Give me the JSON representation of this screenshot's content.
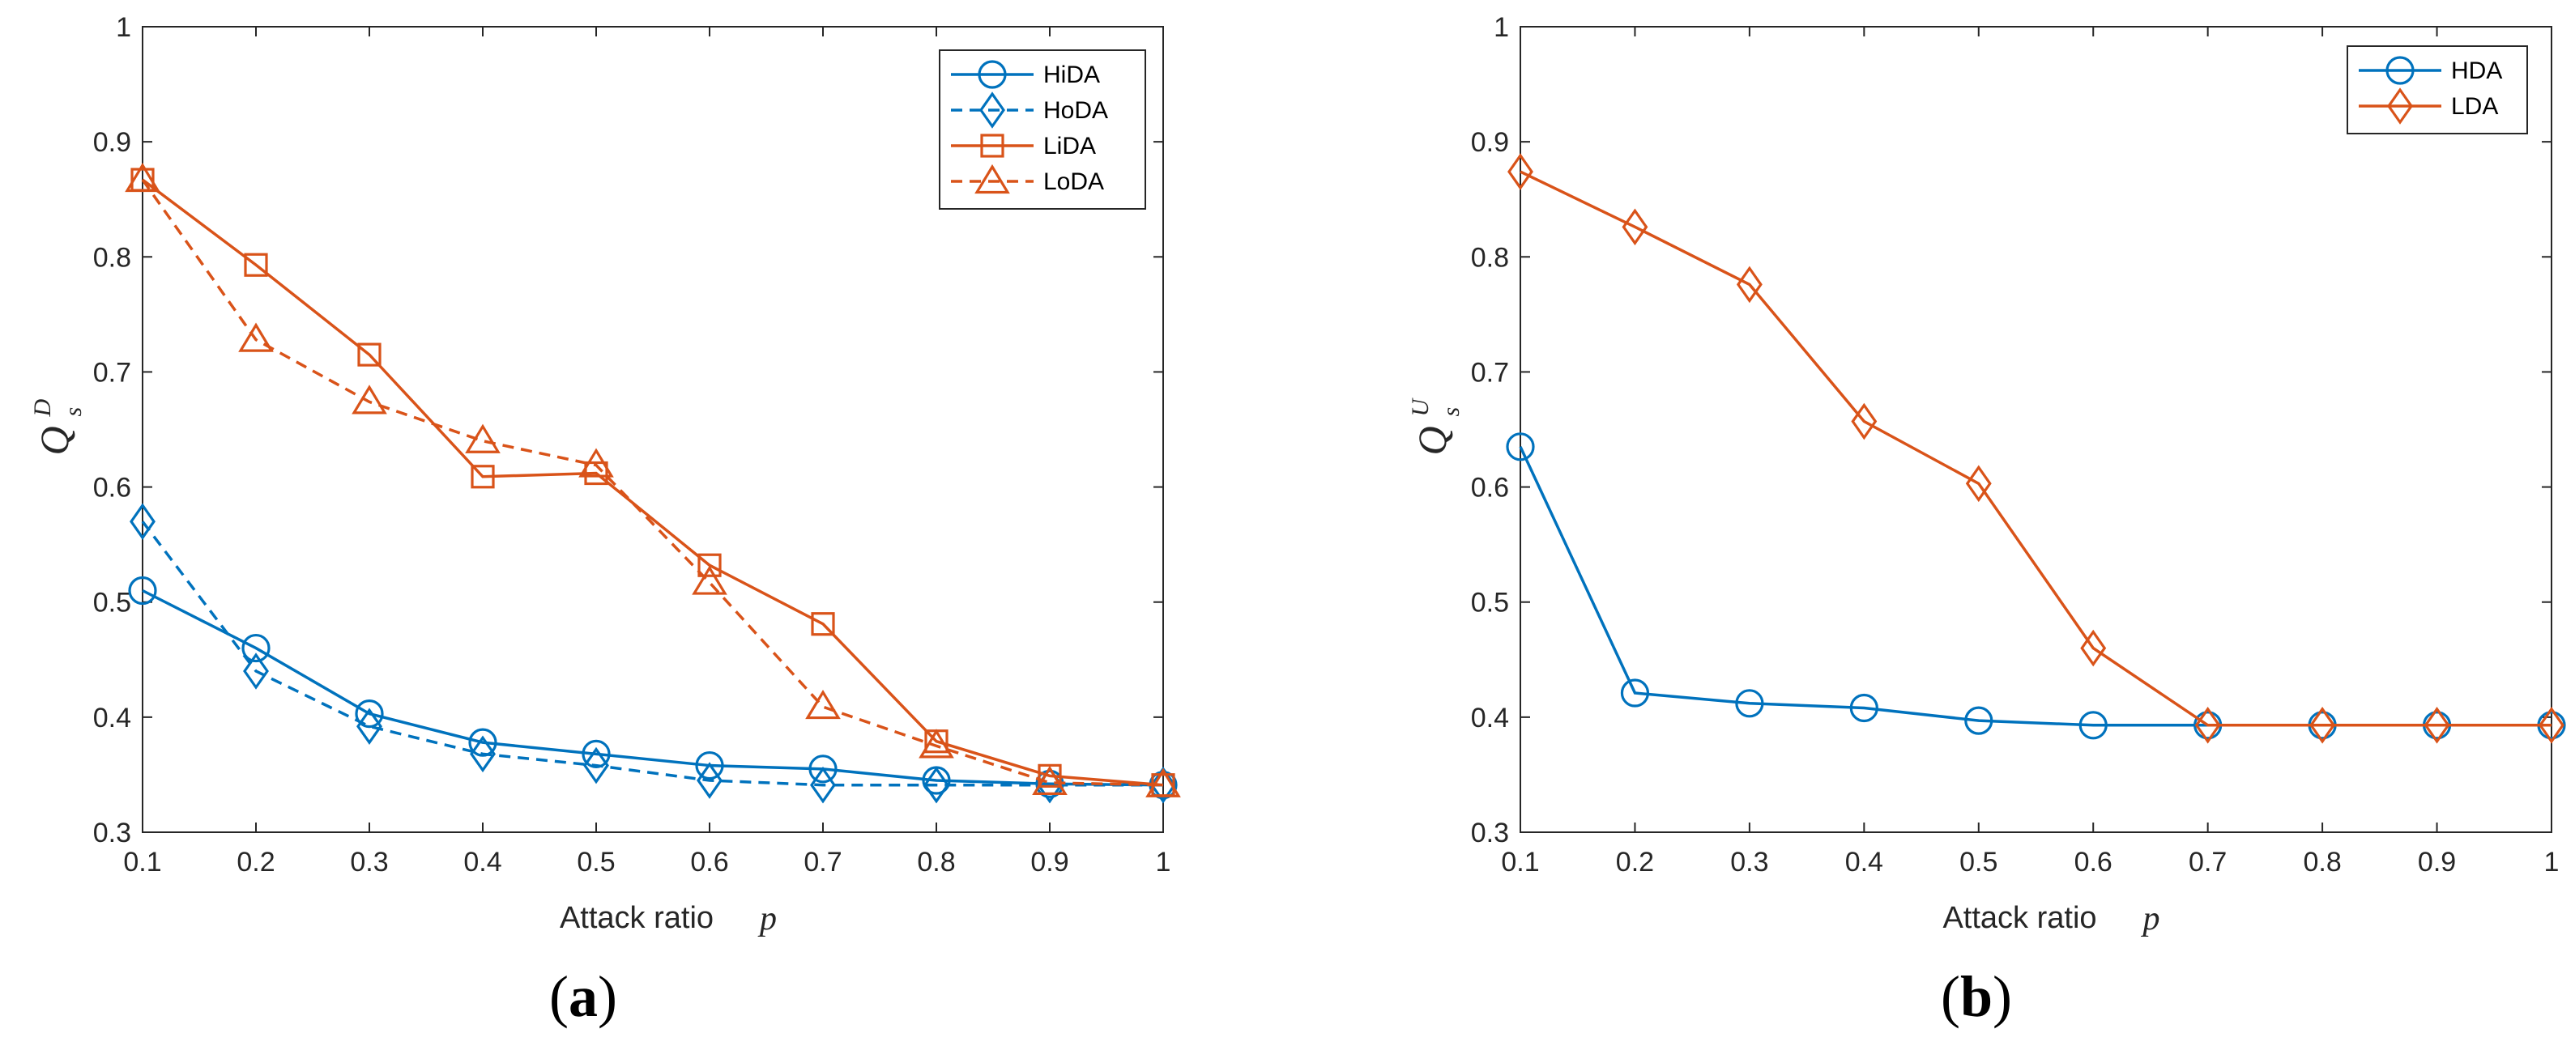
{
  "colors": {
    "blue": "#0072BD",
    "orange": "#D95319",
    "axis": "#262626"
  },
  "chart_data": [
    {
      "id": "a",
      "type": "line",
      "panel_label": {
        "open": "(",
        "letter": "a",
        "close": ")"
      },
      "xlabel": "Attack ratio",
      "xlabel_var": "p",
      "ylabel": {
        "main": "Q",
        "sup": "D",
        "sub": "s"
      },
      "xlim": [
        0.1,
        1
      ],
      "ylim": [
        0.3,
        1
      ],
      "x": [
        0.1,
        0.2,
        0.3,
        0.4,
        0.5,
        0.6,
        0.7,
        0.8,
        0.9,
        1
      ],
      "xticks": [
        "0.1",
        "0.2",
        "0.3",
        "0.4",
        "0.5",
        "0.6",
        "0.7",
        "0.8",
        "0.9",
        "1"
      ],
      "yticks": [
        "0.3",
        "0.4",
        "0.5",
        "0.6",
        "0.7",
        "0.8",
        "0.9",
        "1"
      ],
      "legend_position": "top-right",
      "series": [
        {
          "name": "HiDA",
          "color": "#0072BD",
          "line": "solid",
          "marker": "circle",
          "values": [
            0.51,
            0.46,
            0.403,
            0.378,
            0.368,
            0.358,
            0.355,
            0.345,
            0.342,
            0.341
          ]
        },
        {
          "name": "HoDA",
          "color": "#0072BD",
          "line": "dashed",
          "marker": "diamond",
          "values": [
            0.57,
            0.44,
            0.392,
            0.368,
            0.358,
            0.345,
            0.341,
            0.341,
            0.341,
            0.341
          ]
        },
        {
          "name": "LiDA",
          "color": "#D95319",
          "line": "solid",
          "marker": "square",
          "values": [
            0.867,
            0.793,
            0.715,
            0.609,
            0.612,
            0.532,
            0.481,
            0.379,
            0.349,
            0.341
          ]
        },
        {
          "name": "LoDA",
          "color": "#D95319",
          "line": "dashed",
          "marker": "triangle",
          "values": [
            0.867,
            0.728,
            0.674,
            0.64,
            0.619,
            0.517,
            0.409,
            0.375,
            0.343,
            0.341
          ]
        }
      ]
    },
    {
      "id": "b",
      "type": "line",
      "panel_label": {
        "open": "(",
        "letter": "b",
        "close": ")"
      },
      "xlabel": "Attack ratio",
      "xlabel_var": "p",
      "ylabel": {
        "main": "Q",
        "sup": "U",
        "sub": "s"
      },
      "xlim": [
        0.1,
        1
      ],
      "ylim": [
        0.3,
        1
      ],
      "x": [
        0.1,
        0.2,
        0.3,
        0.4,
        0.5,
        0.6,
        0.7,
        0.8,
        0.9,
        1
      ],
      "xticks": [
        "0.1",
        "0.2",
        "0.3",
        "0.4",
        "0.5",
        "0.6",
        "0.7",
        "0.8",
        "0.9",
        "1"
      ],
      "yticks": [
        "0.3",
        "0.4",
        "0.5",
        "0.6",
        "0.7",
        "0.8",
        "0.9",
        "1"
      ],
      "legend_position": "top-right",
      "series": [
        {
          "name": "HDA",
          "color": "#0072BD",
          "line": "solid",
          "marker": "circle",
          "values": [
            0.635,
            0.421,
            0.412,
            0.408,
            0.397,
            0.393,
            0.393,
            0.393,
            0.393,
            0.393
          ]
        },
        {
          "name": "LDA",
          "color": "#D95319",
          "line": "solid",
          "marker": "diamond",
          "values": [
            0.874,
            0.826,
            0.776,
            0.657,
            0.603,
            0.46,
            0.393,
            0.393,
            0.393,
            0.393
          ]
        }
      ]
    }
  ]
}
